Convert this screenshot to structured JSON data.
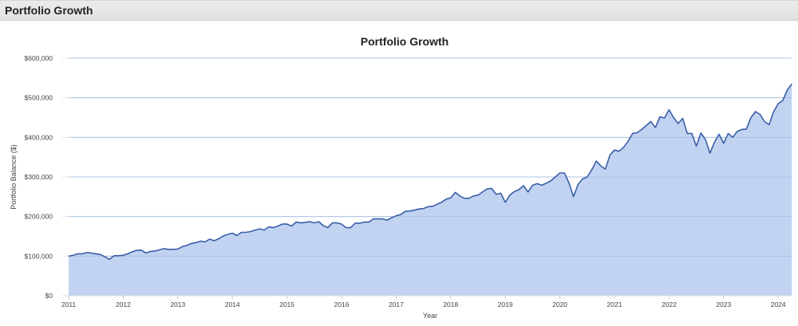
{
  "panel": {
    "title": "Portfolio Growth"
  },
  "colors": {
    "line": "#3a5ea8",
    "fill": "#c1d3f1",
    "grid": "#e6e6e6",
    "axis_text": "#444444"
  },
  "chart_data": {
    "type": "area",
    "title": "Portfolio Growth",
    "xlabel": "Year",
    "ylabel": "Portfolio Balance ($)",
    "ylim": [
      0,
      600000
    ],
    "yticks": [
      0,
      100000,
      200000,
      300000,
      400000,
      500000,
      600000
    ],
    "ytick_labels": [
      "$0",
      "$100,000",
      "$200,000",
      "$300,000",
      "$400,000",
      "$500,000",
      "$600,000"
    ],
    "xticks": [
      "2011",
      "2012",
      "2013",
      "2014",
      "2015",
      "2016",
      "2017",
      "2018",
      "2019",
      "2020",
      "2021",
      "2022",
      "2023",
      "2024"
    ],
    "grid": true,
    "legend": "none",
    "x_start": "2011-01",
    "x_step": "monthly",
    "series": [
      {
        "name": "Portfolio Balance",
        "values": [
          100000,
          102000,
          106000,
          106000,
          109000,
          108000,
          106000,
          104000,
          98000,
          92000,
          101000,
          101000,
          102000,
          106000,
          111000,
          115000,
          115000,
          108000,
          112000,
          113000,
          116000,
          119000,
          117000,
          117000,
          118000,
          124000,
          127000,
          132000,
          134000,
          138000,
          136000,
          143000,
          139000,
          144000,
          151000,
          155000,
          158000,
          152000,
          160000,
          160000,
          162000,
          166000,
          169000,
          166000,
          174000,
          172000,
          176000,
          181000,
          181000,
          176000,
          186000,
          184000,
          185000,
          187000,
          184000,
          187000,
          177000,
          172000,
          184000,
          184000,
          181000,
          172000,
          172000,
          183000,
          183000,
          186000,
          186000,
          194000,
          194000,
          194000,
          191000,
          197000,
          202000,
          205000,
          213000,
          214000,
          216000,
          219000,
          220000,
          225000,
          226000,
          231000,
          236000,
          244000,
          247000,
          261000,
          252000,
          246000,
          246000,
          252000,
          254000,
          262000,
          270000,
          271000,
          256000,
          259000,
          236000,
          254000,
          263000,
          268000,
          278000,
          262000,
          279000,
          283000,
          279000,
          284000,
          290000,
          300000,
          310000,
          310000,
          285000,
          250000,
          281000,
          295000,
          300000,
          318000,
          340000,
          328000,
          320000,
          355000,
          368000,
          365000,
          375000,
          390000,
          410000,
          412000,
          420000,
          430000,
          440000,
          425000,
          452000,
          449000,
          470000,
          450000,
          435000,
          448000,
          410000,
          410000,
          378000,
          411000,
          395000,
          360000,
          388000,
          408000,
          385000,
          410000,
          400000,
          415000,
          420000,
          421000,
          450000,
          465000,
          458000,
          440000,
          432000,
          465000,
          485000,
          493000,
          520000,
          535000
        ]
      }
    ]
  }
}
